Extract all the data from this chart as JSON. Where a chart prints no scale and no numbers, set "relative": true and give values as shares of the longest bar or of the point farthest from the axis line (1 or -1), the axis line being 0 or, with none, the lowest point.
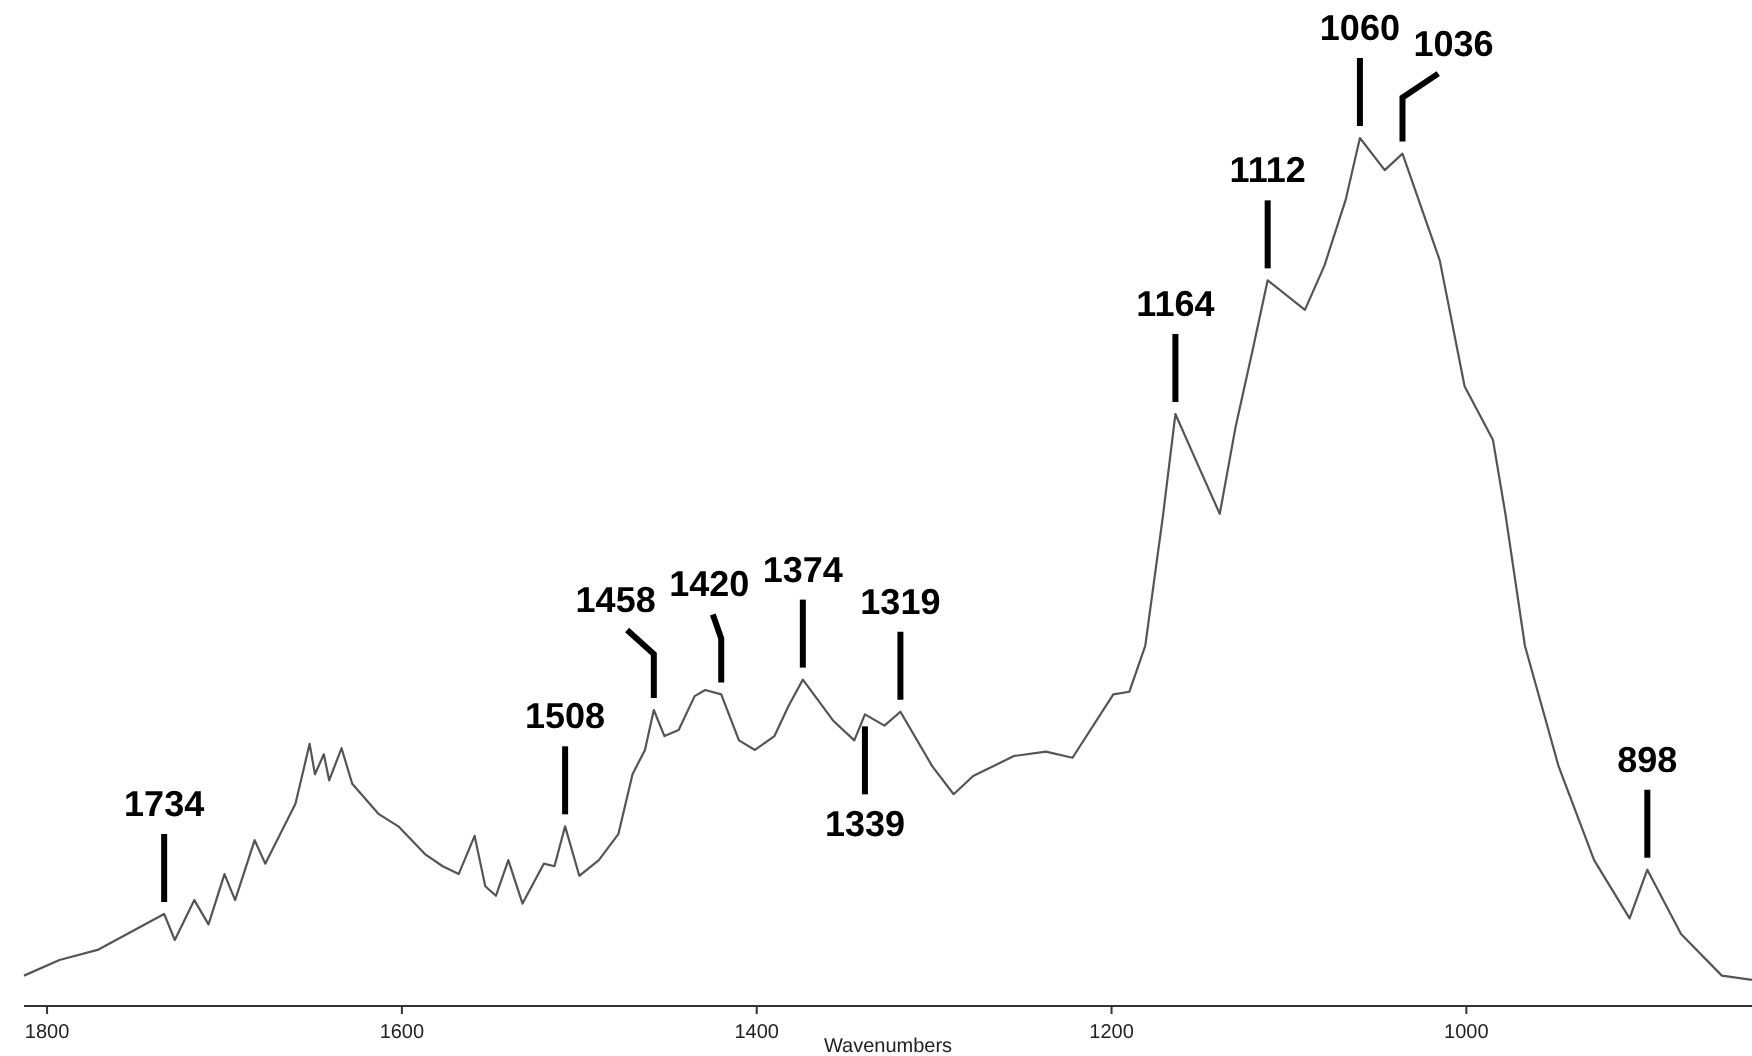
{
  "chart_data": {
    "type": "line",
    "relative": true,
    "xlabel": "Wavenumbers",
    "xlim": [
      1813,
      839
    ],
    "xticks": [
      1800,
      1600,
      1400,
      1200,
      1000
    ],
    "tick_labels": "x",
    "marker": "none",
    "line_style": "solid",
    "x": [
      1813,
      1793,
      1771,
      1734,
      1728,
      1717,
      1709,
      1700,
      1694,
      1683,
      1677,
      1660,
      1652,
      1649,
      1644,
      1641,
      1634,
      1628,
      1613,
      1602,
      1587,
      1577,
      1568,
      1559,
      1553,
      1547,
      1540,
      1532,
      1520,
      1514,
      1508,
      1500,
      1489,
      1478,
      1470,
      1463,
      1458,
      1452,
      1444,
      1435,
      1429,
      1420,
      1410,
      1401,
      1390,
      1382,
      1374,
      1357,
      1345,
      1339,
      1328,
      1319,
      1301,
      1289,
      1278,
      1255,
      1237,
      1222,
      1199,
      1190,
      1181,
      1171,
      1164,
      1151,
      1139,
      1130,
      1120,
      1112,
      1091,
      1080,
      1068,
      1060,
      1046,
      1036,
      1015,
      1001,
      985,
      978,
      967,
      948,
      928,
      908,
      898,
      879,
      856,
      839
    ],
    "series": [
      {
        "color": "#555555",
        "values": [
          0.035,
          0.053,
          0.065,
          0.106,
          0.076,
          0.122,
          0.094,
          0.152,
          0.122,
          0.191,
          0.164,
          0.233,
          0.302,
          0.267,
          0.29,
          0.26,
          0.297,
          0.256,
          0.221,
          0.207,
          0.175,
          0.161,
          0.152,
          0.196,
          0.138,
          0.127,
          0.168,
          0.118,
          0.164,
          0.161,
          0.207,
          0.15,
          0.168,
          0.198,
          0.267,
          0.295,
          0.341,
          0.311,
          0.318,
          0.357,
          0.364,
          0.359,
          0.306,
          0.295,
          0.311,
          0.346,
          0.376,
          0.329,
          0.306,
          0.336,
          0.323,
          0.339,
          0.276,
          0.244,
          0.265,
          0.288,
          0.293,
          0.286,
          0.359,
          0.362,
          0.415,
          0.565,
          0.682,
          0.622,
          0.567,
          0.668,
          0.76,
          0.836,
          0.802,
          0.853,
          0.929,
          1,
          0.963,
          0.982,
          0.859,
          0.714,
          0.652,
          0.567,
          0.415,
          0.276,
          0.168,
          0.101,
          0.157,
          0.083,
          0.035,
          0.03
        ]
      }
    ],
    "annotations": [
      {
        "text": "1734",
        "x": 1734,
        "y": 0.106
      },
      {
        "text": "1508",
        "x": 1508,
        "y": 0.207
      },
      {
        "text": "1458",
        "x": 1458,
        "y": 0.341
      },
      {
        "text": "1420",
        "x": 1420,
        "y": 0.359
      },
      {
        "text": "1374",
        "x": 1374,
        "y": 0.376
      },
      {
        "text": "1339",
        "x": 1339,
        "y": 0.336
      },
      {
        "text": "1319",
        "x": 1319,
        "y": 0.339
      },
      {
        "text": "1164",
        "x": 1164,
        "y": 0.682
      },
      {
        "text": "1112",
        "x": 1112,
        "y": 0.836
      },
      {
        "text": "1060",
        "x": 1060,
        "y": 1
      },
      {
        "text": "1036",
        "x": 1036,
        "y": 0.982
      },
      {
        "text": "898",
        "x": 898,
        "y": 0.157
      }
    ]
  }
}
